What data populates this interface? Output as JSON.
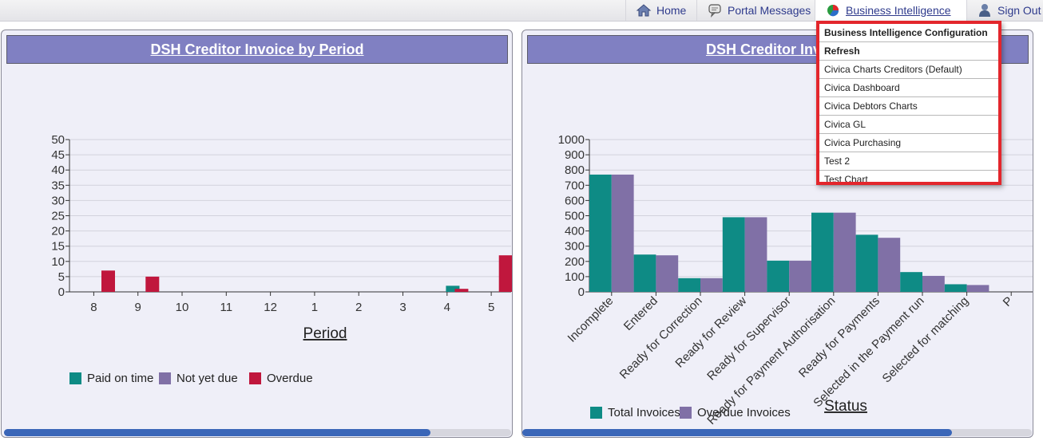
{
  "nav": {
    "home": "Home",
    "portal_messages": "Portal Messages",
    "business_intelligence": "Business Intelligence",
    "sign_out": "Sign Out"
  },
  "dropdown": {
    "items": [
      {
        "label": "Business Intelligence Configuration",
        "bold": true
      },
      {
        "label": "Refresh",
        "bold": true
      },
      {
        "label": "Civica Charts Creditors (Default)",
        "bold": false
      },
      {
        "label": "Civica Dashboard",
        "bold": false
      },
      {
        "label": "Civica Debtors Charts",
        "bold": false
      },
      {
        "label": "Civica GL",
        "bold": false
      },
      {
        "label": "Civica Purchasing",
        "bold": false
      },
      {
        "label": "Test 2",
        "bold": false
      },
      {
        "label": "Test Chart",
        "bold": false
      }
    ]
  },
  "panels": {
    "left_title": "DSH Creditor Invoice by Period",
    "right_title": "DSH Creditor Invoice"
  },
  "colors": {
    "teal": "#0e8b85",
    "purple": "#8070a6",
    "crimson": "#c0173d",
    "panel_title_bg": "#8080c2",
    "highlight": "#e3262c"
  },
  "chart_data": [
    {
      "type": "bar",
      "title": "DSH Creditor Invoice by Period",
      "xlabel": "Period",
      "ylabel": "",
      "ylim": [
        0,
        50
      ],
      "yticks": [
        0,
        5,
        10,
        15,
        20,
        25,
        30,
        35,
        40,
        45,
        50
      ],
      "categories": [
        "8",
        "9",
        "10",
        "11",
        "12",
        "1",
        "2",
        "3",
        "4",
        "5"
      ],
      "series": [
        {
          "name": "Paid on time",
          "color": "#0e8b85",
          "values": [
            0,
            0,
            0,
            0,
            0,
            0,
            0,
            0,
            2,
            0
          ]
        },
        {
          "name": "Not yet due",
          "color": "#8070a6",
          "values": [
            0,
            0,
            0,
            0,
            0,
            0,
            0,
            0,
            0,
            0
          ]
        },
        {
          "name": "Overdue",
          "color": "#c0173d",
          "values": [
            7,
            5,
            0,
            0,
            0,
            0,
            0,
            0,
            1,
            12
          ]
        }
      ],
      "legend_position": "bottom-left",
      "grid": true
    },
    {
      "type": "bar",
      "title": "DSH Creditor Invoice",
      "xlabel": "Status",
      "ylabel": "",
      "ylim": [
        0,
        1000
      ],
      "yticks": [
        0,
        100,
        200,
        300,
        400,
        500,
        600,
        700,
        800,
        900,
        1000
      ],
      "categories": [
        "Incomplete",
        "Entered",
        "Ready for Correction",
        "Ready for Review",
        "Ready for Supervisor",
        "Ready for Payment Authorisation",
        "Ready for Payments",
        "Selected in the Payment run",
        "Selected for matching",
        "P"
      ],
      "series": [
        {
          "name": "Total Invoices",
          "color": "#0e8b85",
          "values": [
            770,
            245,
            90,
            490,
            205,
            520,
            375,
            130,
            50,
            0
          ]
        },
        {
          "name": "Overdue Invoices",
          "color": "#8070a6",
          "values": [
            770,
            240,
            90,
            490,
            205,
            520,
            355,
            105,
            45,
            0
          ]
        }
      ],
      "legend_position": "bottom-left",
      "grid": true
    }
  ]
}
